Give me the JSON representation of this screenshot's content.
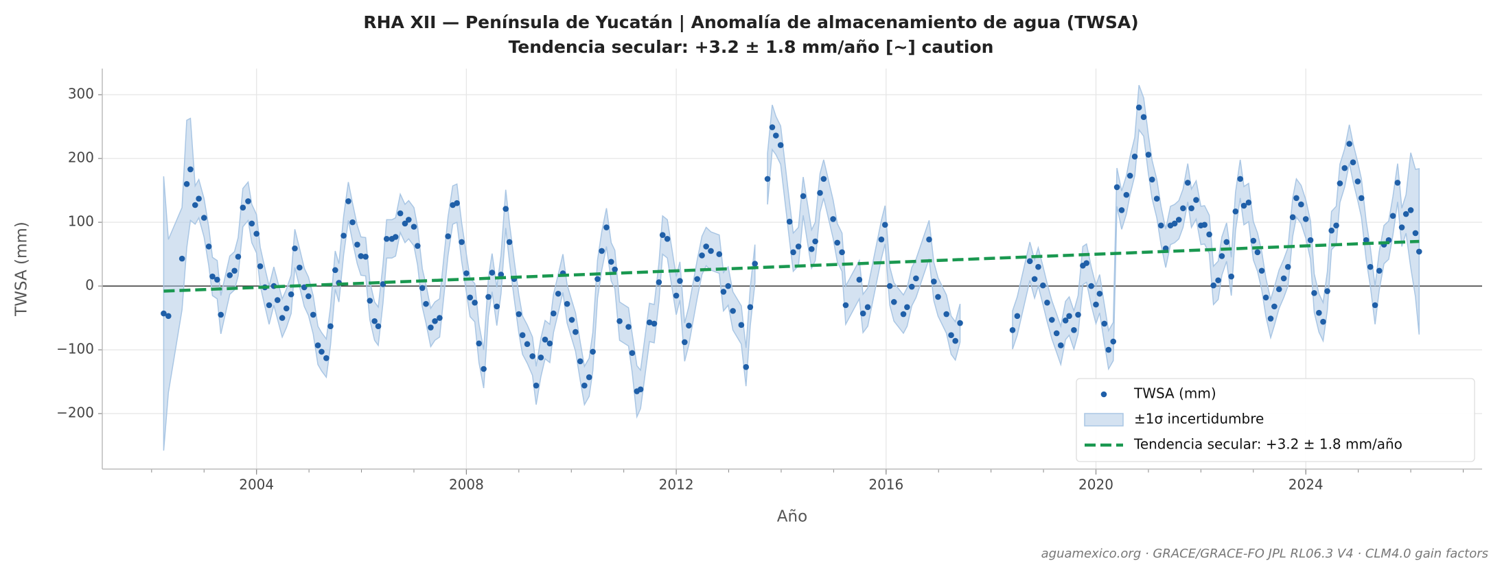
{
  "chart_data": {
    "type": "scatter",
    "title": "RHA XII — Península de Yucatán  |  Anomalía de almacenamiento de agua (TWSA)",
    "subtitle": "Tendencia secular: +3.2 ± 1.8 mm/año  [~] caution",
    "x_label": "Año",
    "y_label": "TWSA (mm)",
    "source": "aguamexico.org · GRACE/GRACE-FO JPL RL06.3 V4 · CLM4.0 gain factors",
    "xlim": [
      2001.06,
      2027.36
    ],
    "ylim": [
      -287,
      341
    ],
    "xticks": [
      2004,
      2008,
      2012,
      2016,
      2020,
      2024
    ],
    "xminorticks": [
      2002,
      2003,
      2004,
      2005,
      2006,
      2007,
      2008,
      2009,
      2010,
      2011,
      2012,
      2013,
      2014,
      2015,
      2016,
      2017,
      2018,
      2019,
      2020,
      2021,
      2022,
      2023,
      2024,
      2025,
      2026,
      2027
    ],
    "yticks": [
      {
        "value": -200,
        "label": "−200"
      },
      {
        "value": -100,
        "label": "−100"
      },
      0,
      100,
      200,
      300
    ],
    "grid": true,
    "legend": "lower right",
    "series": [
      {
        "name": "TWSA (mm)",
        "type": "scatter",
        "color": "#1f5fa8",
        "error_name": "±1σ incertidumbre",
        "error_color": "#a9c6e4",
        "x": [
          2002.23,
          2002.32,
          2002.58,
          2002.67,
          2002.74,
          2002.83,
          2002.9,
          2003.0,
          2003.09,
          2003.16,
          2003.25,
          2003.32,
          2003.49,
          2003.58,
          2003.65,
          2003.74,
          2003.84,
          2003.91,
          2004.0,
          2004.07,
          2004.16,
          2004.24,
          2004.33,
          2004.4,
          2004.49,
          2004.57,
          2004.66,
          2004.73,
          2004.82,
          2004.91,
          2004.99,
          2005.08,
          2005.17,
          2005.24,
          2005.33,
          2005.41,
          2005.5,
          2005.57,
          2005.66,
          2005.75,
          2005.83,
          2005.92,
          2005.99,
          2006.08,
          2006.16,
          2006.25,
          2006.32,
          2006.41,
          2006.48,
          2006.58,
          2006.65,
          2006.74,
          2006.83,
          2006.9,
          2007.0,
          2007.07,
          2007.16,
          2007.23,
          2007.32,
          2007.4,
          2007.49,
          2007.65,
          2007.74,
          2007.82,
          2007.91,
          2008.0,
          2008.07,
          2008.16,
          2008.24,
          2008.33,
          2008.42,
          2008.49,
          2008.58,
          2008.66,
          2008.75,
          2008.82,
          2008.91,
          2009.0,
          2009.07,
          2009.16,
          2009.26,
          2009.33,
          2009.42,
          2009.5,
          2009.59,
          2009.66,
          2009.75,
          2009.84,
          2009.92,
          2010.01,
          2010.08,
          2010.17,
          2010.25,
          2010.34,
          2010.41,
          2010.5,
          2010.58,
          2010.67,
          2010.76,
          2010.83,
          2010.92,
          2011.09,
          2011.16,
          2011.25,
          2011.32,
          2011.49,
          2011.58,
          2011.67,
          2011.74,
          2011.83,
          2012.0,
          2012.07,
          2012.16,
          2012.24,
          2012.4,
          2012.49,
          2012.57,
          2012.66,
          2012.82,
          2012.9,
          2012.99,
          2013.08,
          2013.24,
          2013.33,
          2013.41,
          2013.5,
          2013.62,
          2013.74,
          2013.83,
          2013.9,
          2013.99,
          2014.16,
          2014.23,
          2014.33,
          2014.42,
          2014.58,
          2014.65,
          2014.74,
          2014.81,
          2014.99,
          2015.07,
          2015.16,
          2015.23,
          2015.49,
          2015.56,
          2015.65,
          2015.91,
          2015.98,
          2016.07,
          2016.15,
          2016.33,
          2016.4,
          2016.49,
          2016.57,
          2016.82,
          2016.91,
          2016.99,
          2017.15,
          2017.24,
          2017.32,
          2017.41,
          2017.9,
          2018.41,
          2018.5,
          2018.74,
          2018.83,
          2018.9,
          2018.99,
          2019.07,
          2019.16,
          2019.25,
          2019.33,
          2019.42,
          2019.49,
          2019.58,
          2019.66,
          2019.75,
          2019.82,
          2019.91,
          2020.0,
          2020.07,
          2020.16,
          2020.24,
          2020.33,
          2020.4,
          2020.49,
          2020.58,
          2020.65,
          2020.74,
          2020.82,
          2020.91,
          2021.0,
          2021.07,
          2021.16,
          2021.24,
          2021.33,
          2021.42,
          2021.5,
          2021.58,
          2021.66,
          2021.75,
          2021.82,
          2021.91,
          2022.0,
          2022.07,
          2022.16,
          2022.24,
          2022.33,
          2022.4,
          2022.49,
          2022.58,
          2022.66,
          2022.75,
          2022.82,
          2022.91,
          2023.0,
          2023.08,
          2023.16,
          2023.24,
          2023.33,
          2023.4,
          2023.49,
          2023.58,
          2023.66,
          2023.75,
          2023.82,
          2023.91,
          2024.0,
          2024.09,
          2024.16,
          2024.25,
          2024.33,
          2024.41,
          2024.49,
          2024.58,
          2024.65,
          2024.74,
          2024.83,
          2024.9,
          2024.99,
          2025.06,
          2025.15,
          2025.23,
          2025.32,
          2025.4,
          2025.49,
          2025.58,
          2025.66,
          2025.75,
          2025.83,
          2025.91,
          2026.0,
          2026.09,
          2026.16
        ],
        "values": [
          -43,
          -47,
          43,
          160,
          183,
          127,
          137,
          107,
          62,
          15,
          10,
          -45,
          17,
          24,
          46,
          123,
          133,
          98,
          82,
          31,
          -2,
          -30,
          0,
          -22,
          -50,
          -35,
          -13,
          59,
          29,
          -2,
          -16,
          -45,
          -93,
          -103,
          -113,
          -63,
          25,
          5,
          79,
          133,
          100,
          65,
          47,
          46,
          -23,
          -55,
          -63,
          3,
          74,
          74,
          77,
          114,
          98,
          104,
          93,
          63,
          -3,
          -28,
          -65,
          -55,
          -50,
          78,
          127,
          130,
          69,
          20,
          -18,
          -26,
          -90,
          -130,
          -17,
          21,
          -32,
          18,
          121,
          69,
          11,
          -44,
          -77,
          -91,
          -110,
          -156,
          -112,
          -84,
          -90,
          -43,
          -12,
          20,
          -28,
          -53,
          -72,
          -118,
          -156,
          -143,
          -103,
          11,
          55,
          92,
          38,
          26,
          -55,
          -64,
          -105,
          -165,
          -162,
          -57,
          -59,
          6,
          80,
          74,
          -15,
          8,
          -88,
          -62,
          11,
          48,
          62,
          55,
          50,
          -9,
          0,
          -39,
          -61,
          -127,
          -33,
          35,
          null,
          168,
          249,
          236,
          221,
          101,
          53,
          62,
          141,
          58,
          70,
          146,
          168,
          105,
          68,
          53,
          -30,
          10,
          -43,
          -33,
          73,
          96,
          0,
          -25,
          -44,
          -33,
          -1,
          12,
          73,
          7,
          -17,
          -44,
          -77,
          -86,
          -58,
          null,
          -69,
          -47,
          39,
          11,
          30,
          1,
          -26,
          -53,
          -74,
          -93,
          -54,
          -47,
          -69,
          -45,
          32,
          36,
          0,
          -29,
          -12,
          -59,
          -100,
          -87,
          155,
          119,
          143,
          173,
          203,
          280,
          265,
          206,
          167,
          137,
          95,
          59,
          95,
          98,
          104,
          122,
          162,
          122,
          135,
          95,
          96,
          81,
          1,
          9,
          47,
          69,
          15,
          117,
          168,
          126,
          131,
          71,
          53,
          24,
          -18,
          -51,
          -32,
          -5,
          12,
          30,
          108,
          138,
          128,
          105,
          72,
          -11,
          -42,
          -56,
          -8,
          87,
          95,
          161,
          185,
          223,
          194,
          164,
          138,
          72,
          30,
          -30,
          24,
          65,
          72,
          110,
          162,
          92,
          113,
          119,
          83,
          54
        ],
        "errors": [
          215,
          120,
          80,
          100,
          80,
          30,
          30,
          30,
          30,
          30,
          30,
          30,
          30,
          30,
          30,
          30,
          30,
          30,
          30,
          30,
          30,
          30,
          30,
          30,
          30,
          30,
          30,
          30,
          30,
          30,
          30,
          30,
          30,
          30,
          30,
          30,
          30,
          30,
          30,
          30,
          30,
          30,
          30,
          30,
          30,
          30,
          30,
          30,
          30,
          30,
          30,
          30,
          30,
          30,
          30,
          30,
          30,
          30,
          30,
          30,
          30,
          30,
          30,
          30,
          30,
          30,
          30,
          30,
          30,
          30,
          30,
          30,
          30,
          30,
          30,
          30,
          30,
          30,
          30,
          30,
          30,
          30,
          30,
          30,
          30,
          30,
          30,
          30,
          30,
          30,
          30,
          30,
          30,
          30,
          30,
          30,
          30,
          30,
          30,
          30,
          30,
          30,
          30,
          40,
          30,
          30,
          30,
          30,
          30,
          30,
          30,
          30,
          30,
          30,
          30,
          30,
          30,
          30,
          30,
          30,
          30,
          30,
          30,
          30,
          30,
          30,
          null,
          40,
          35,
          30,
          30,
          30,
          30,
          30,
          30,
          30,
          30,
          30,
          30,
          30,
          30,
          30,
          30,
          30,
          30,
          30,
          30,
          30,
          30,
          30,
          30,
          30,
          30,
          30,
          30,
          30,
          30,
          30,
          30,
          30,
          30,
          null,
          30,
          30,
          30,
          30,
          30,
          30,
          30,
          30,
          30,
          30,
          30,
          30,
          30,
          30,
          30,
          30,
          30,
          30,
          30,
          30,
          30,
          30,
          30,
          30,
          30,
          30,
          30,
          35,
          30,
          30,
          30,
          30,
          30,
          30,
          30,
          30,
          30,
          30,
          30,
          30,
          30,
          30,
          30,
          30,
          30,
          30,
          30,
          30,
          30,
          30,
          30,
          30,
          30,
          30,
          30,
          30,
          30,
          30,
          30,
          30,
          30,
          30,
          30,
          30,
          30,
          30,
          30,
          30,
          30,
          30,
          30,
          30,
          30,
          30,
          30,
          30,
          30,
          30,
          30,
          30,
          30,
          30,
          30,
          30,
          30,
          30,
          30,
          30,
          30,
          90,
          100,
          130
        ]
      },
      {
        "name": "Tendencia secular: +3.2 ± 1.8 mm/año",
        "type": "line",
        "color": "#1a9850",
        "x": [
          2002.23,
          2026.16
        ],
        "values": [
          -8,
          70
        ]
      }
    ]
  }
}
